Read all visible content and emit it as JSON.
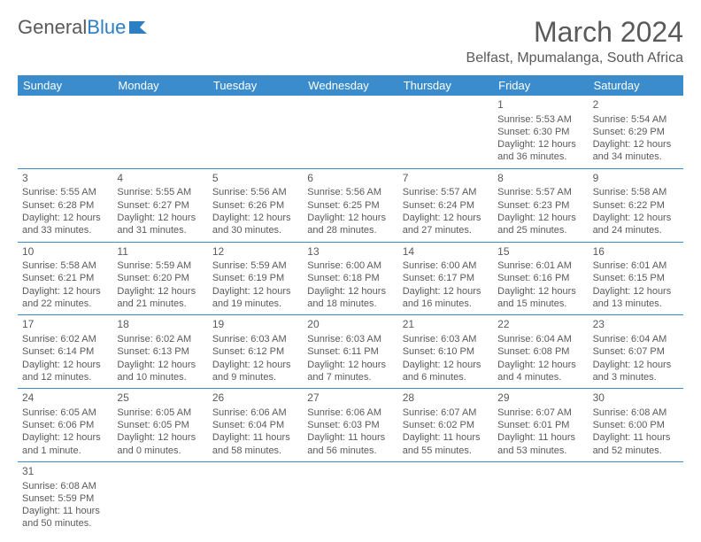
{
  "logo": {
    "textA": "General",
    "textB": "Blue"
  },
  "title": "March 2024",
  "subtitle": "Belfast, Mpumalanga, South Africa",
  "colors": {
    "headerBg": "#3a8ccc",
    "headerText": "#ffffff",
    "text": "#5a5a5a",
    "rowBorder": "#3a8ccc",
    "logoBlue": "#2d7fc4"
  },
  "dayNames": [
    "Sunday",
    "Monday",
    "Tuesday",
    "Wednesday",
    "Thursday",
    "Friday",
    "Saturday"
  ],
  "weeks": [
    [
      null,
      null,
      null,
      null,
      null,
      {
        "n": "1",
        "sr": "5:53 AM",
        "ss": "6:30 PM",
        "dh": "12",
        "dm": "36 minutes"
      },
      {
        "n": "2",
        "sr": "5:54 AM",
        "ss": "6:29 PM",
        "dh": "12",
        "dm": "34 minutes"
      }
    ],
    [
      {
        "n": "3",
        "sr": "5:55 AM",
        "ss": "6:28 PM",
        "dh": "12",
        "dm": "33 minutes"
      },
      {
        "n": "4",
        "sr": "5:55 AM",
        "ss": "6:27 PM",
        "dh": "12",
        "dm": "31 minutes"
      },
      {
        "n": "5",
        "sr": "5:56 AM",
        "ss": "6:26 PM",
        "dh": "12",
        "dm": "30 minutes"
      },
      {
        "n": "6",
        "sr": "5:56 AM",
        "ss": "6:25 PM",
        "dh": "12",
        "dm": "28 minutes"
      },
      {
        "n": "7",
        "sr": "5:57 AM",
        "ss": "6:24 PM",
        "dh": "12",
        "dm": "27 minutes"
      },
      {
        "n": "8",
        "sr": "5:57 AM",
        "ss": "6:23 PM",
        "dh": "12",
        "dm": "25 minutes"
      },
      {
        "n": "9",
        "sr": "5:58 AM",
        "ss": "6:22 PM",
        "dh": "12",
        "dm": "24 minutes"
      }
    ],
    [
      {
        "n": "10",
        "sr": "5:58 AM",
        "ss": "6:21 PM",
        "dh": "12",
        "dm": "22 minutes"
      },
      {
        "n": "11",
        "sr": "5:59 AM",
        "ss": "6:20 PM",
        "dh": "12",
        "dm": "21 minutes"
      },
      {
        "n": "12",
        "sr": "5:59 AM",
        "ss": "6:19 PM",
        "dh": "12",
        "dm": "19 minutes"
      },
      {
        "n": "13",
        "sr": "6:00 AM",
        "ss": "6:18 PM",
        "dh": "12",
        "dm": "18 minutes"
      },
      {
        "n": "14",
        "sr": "6:00 AM",
        "ss": "6:17 PM",
        "dh": "12",
        "dm": "16 minutes"
      },
      {
        "n": "15",
        "sr": "6:01 AM",
        "ss": "6:16 PM",
        "dh": "12",
        "dm": "15 minutes"
      },
      {
        "n": "16",
        "sr": "6:01 AM",
        "ss": "6:15 PM",
        "dh": "12",
        "dm": "13 minutes"
      }
    ],
    [
      {
        "n": "17",
        "sr": "6:02 AM",
        "ss": "6:14 PM",
        "dh": "12",
        "dm": "12 minutes"
      },
      {
        "n": "18",
        "sr": "6:02 AM",
        "ss": "6:13 PM",
        "dh": "12",
        "dm": "10 minutes"
      },
      {
        "n": "19",
        "sr": "6:03 AM",
        "ss": "6:12 PM",
        "dh": "12",
        "dm": "9 minutes"
      },
      {
        "n": "20",
        "sr": "6:03 AM",
        "ss": "6:11 PM",
        "dh": "12",
        "dm": "7 minutes"
      },
      {
        "n": "21",
        "sr": "6:03 AM",
        "ss": "6:10 PM",
        "dh": "12",
        "dm": "6 minutes"
      },
      {
        "n": "22",
        "sr": "6:04 AM",
        "ss": "6:08 PM",
        "dh": "12",
        "dm": "4 minutes"
      },
      {
        "n": "23",
        "sr": "6:04 AM",
        "ss": "6:07 PM",
        "dh": "12",
        "dm": "3 minutes"
      }
    ],
    [
      {
        "n": "24",
        "sr": "6:05 AM",
        "ss": "6:06 PM",
        "dh": "12",
        "dm": "1 minute"
      },
      {
        "n": "25",
        "sr": "6:05 AM",
        "ss": "6:05 PM",
        "dh": "12",
        "dm": "0 minutes"
      },
      {
        "n": "26",
        "sr": "6:06 AM",
        "ss": "6:04 PM",
        "dh": "11",
        "dm": "58 minutes"
      },
      {
        "n": "27",
        "sr": "6:06 AM",
        "ss": "6:03 PM",
        "dh": "11",
        "dm": "56 minutes"
      },
      {
        "n": "28",
        "sr": "6:07 AM",
        "ss": "6:02 PM",
        "dh": "11",
        "dm": "55 minutes"
      },
      {
        "n": "29",
        "sr": "6:07 AM",
        "ss": "6:01 PM",
        "dh": "11",
        "dm": "53 minutes"
      },
      {
        "n": "30",
        "sr": "6:08 AM",
        "ss": "6:00 PM",
        "dh": "11",
        "dm": "52 minutes"
      }
    ],
    [
      {
        "n": "31",
        "sr": "6:08 AM",
        "ss": "5:59 PM",
        "dh": "11",
        "dm": "50 minutes"
      },
      null,
      null,
      null,
      null,
      null,
      null
    ]
  ],
  "labels": {
    "sunrise": "Sunrise:",
    "sunset": "Sunset:",
    "daylight": "Daylight:",
    "hours": "hours",
    "and": "and"
  }
}
